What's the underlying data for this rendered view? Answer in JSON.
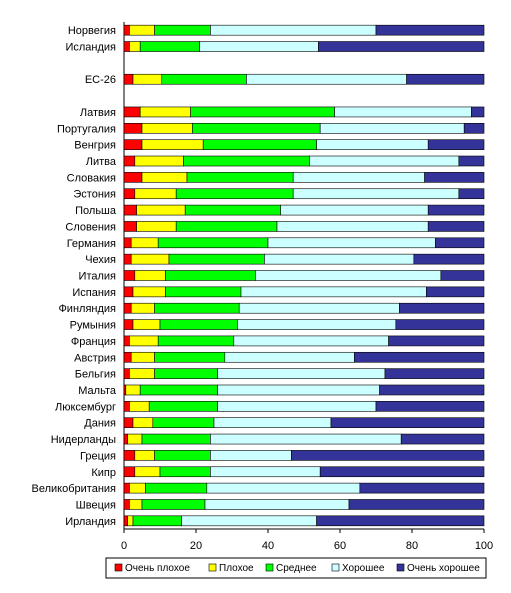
{
  "chart_data": {
    "type": "bar",
    "orientation": "horizontal",
    "stacked": true,
    "title": "",
    "xlabel": "",
    "ylabel": "",
    "xlim": [
      0,
      100
    ],
    "xticks": [
      "0",
      "20",
      "40",
      "60",
      "80",
      "100"
    ],
    "grid": false,
    "legend_position": "bottom",
    "categories": [
      "Норвегия",
      "Исландия",
      "",
      "ЕС-26",
      "",
      "Латвия",
      "Португалия",
      "Венгрия",
      "Литва",
      "Словакия",
      "Эстония",
      "Польша",
      "Словения",
      "Германия",
      "Чехия",
      "Италия",
      "Испания",
      "Финляндия",
      "Румыния",
      "Франция",
      "Австрия",
      "Бельгия",
      "Мальта",
      "Люксембург",
      "Дания",
      "Нидерланды",
      "Греция",
      "Кипр",
      "Великобритания",
      "Швеция",
      "Ирландия"
    ],
    "series": [
      {
        "name": "Очень плохое",
        "color": "#ff0000",
        "values": [
          1.5,
          1.5,
          null,
          2.5,
          null,
          4.5,
          5,
          5,
          3,
          5,
          3,
          3.5,
          3.5,
          2,
          2,
          3,
          2.5,
          2,
          2.5,
          1.5,
          2,
          1.5,
          0.5,
          1.5,
          2.5,
          1,
          3,
          3,
          1.5,
          1.5,
          1
        ]
      },
      {
        "name": "Плохое",
        "color": "#ffff00",
        "values": [
          7,
          3,
          null,
          8,
          null,
          14,
          14,
          17,
          13.5,
          12.5,
          11.5,
          13.5,
          11,
          7.5,
          10.5,
          8.5,
          9,
          6.5,
          7.5,
          8,
          6.5,
          7,
          4,
          5.5,
          5.5,
          4,
          5.5,
          7,
          4.5,
          3.5,
          1.5
        ]
      },
      {
        "name": "Среднее",
        "color": "#00ff00",
        "values": [
          15.5,
          16.5,
          null,
          23.5,
          null,
          40,
          35.5,
          31.5,
          35,
          29.5,
          32.5,
          26.5,
          28,
          30.5,
          26.5,
          25,
          21,
          23.5,
          21.5,
          21,
          19.5,
          17.5,
          21.5,
          19,
          17,
          19,
          15.5,
          14,
          17,
          17.5,
          13.5
        ]
      },
      {
        "name": "Хорошее",
        "color": "#ccffff",
        "values": [
          46,
          33,
          null,
          44.5,
          null,
          38,
          40,
          31,
          41.5,
          36.5,
          46,
          41,
          42,
          46.5,
          41.5,
          51.5,
          51.5,
          44.5,
          44,
          43,
          36,
          46.5,
          45,
          44,
          32.5,
          53,
          22.5,
          30.5,
          42.5,
          40,
          37.5
        ]
      },
      {
        "name": "Очень хорошее",
        "color": "#333399",
        "values": [
          30,
          46,
          null,
          21.5,
          null,
          3.5,
          5.5,
          15.5,
          7,
          16.5,
          7,
          15.5,
          15.5,
          13.5,
          19.5,
          12,
          16,
          23.5,
          24.5,
          26.5,
          36,
          27.5,
          29,
          30,
          42.5,
          23,
          53.5,
          45.5,
          34.5,
          37.5,
          46.5
        ]
      }
    ]
  }
}
